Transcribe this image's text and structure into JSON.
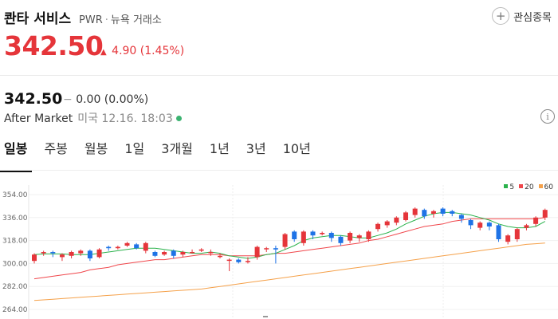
{
  "stock": {
    "name": "콴타 서비스",
    "ticker": "PWR",
    "exchange": "뉴욕 거래소",
    "price": "342.50",
    "change": "4.90",
    "change_pct": "(1.45%)",
    "up_color": "#e5353a",
    "down_color": "#1e73e6"
  },
  "watchlist": {
    "label": "관심종목",
    "icon": "plus-icon"
  },
  "after_market": {
    "price": "342.50",
    "change_symbol": "−",
    "change": "0.00 (0.00%)",
    "label": "After Market",
    "timestamp": "미국 12.16. 18:03",
    "status_color": "#3cb371",
    "info_icon": "info-icon"
  },
  "tabs": [
    {
      "label": "일봉",
      "active": true
    },
    {
      "label": "주봉",
      "active": false
    },
    {
      "label": "월봉",
      "active": false
    },
    {
      "label": "1일",
      "active": false
    },
    {
      "label": "3개월",
      "active": false
    },
    {
      "label": "1년",
      "active": false
    },
    {
      "label": "3년",
      "active": false
    },
    {
      "label": "10년",
      "active": false
    }
  ],
  "chart_data": {
    "type": "candlestick",
    "y_ticks": [
      "354.00",
      "336.00",
      "318.00",
      "300.00",
      "282.00",
      "264.00"
    ],
    "ylim": [
      264,
      354
    ],
    "legend": [
      {
        "name": "5",
        "color": "#2bb24c"
      },
      {
        "name": "20",
        "color": "#f0474c"
      },
      {
        "name": "60",
        "color": "#f5a14a"
      }
    ],
    "candles": [
      [
        302,
        307,
        301,
        308,
        300
      ],
      [
        308,
        309,
        308,
        310,
        306
      ],
      [
        309,
        308,
        308,
        310,
        305
      ],
      [
        305,
        307,
        303,
        308,
        302
      ],
      [
        306,
        309,
        305,
        310,
        304
      ],
      [
        308,
        310,
        308,
        311,
        306
      ],
      [
        310,
        304,
        304,
        311,
        302
      ],
      [
        305,
        311,
        305,
        312,
        304
      ],
      [
        313,
        312,
        311,
        314,
        310
      ],
      [
        312,
        313,
        311,
        314,
        311
      ],
      [
        314,
        316,
        313,
        317,
        313
      ],
      [
        315,
        312,
        312,
        316,
        311
      ],
      [
        310,
        316,
        309,
        317,
        308
      ],
      [
        309,
        306,
        306,
        310,
        305
      ],
      [
        307,
        309,
        306,
        310,
        306
      ],
      [
        310,
        306,
        305,
        311,
        304
      ],
      [
        307,
        309,
        306,
        310,
        305
      ],
      [
        309,
        309,
        308,
        311,
        308
      ],
      [
        310,
        311,
        309,
        312,
        309
      ],
      [
        309,
        309,
        307,
        311,
        306
      ],
      [
        306,
        306,
        305,
        308,
        304
      ],
      [
        303,
        303,
        302,
        304,
        294
      ],
      [
        303,
        301,
        301,
        304,
        300
      ],
      [
        302,
        302,
        301,
        305,
        300
      ],
      [
        305,
        313,
        304,
        314,
        303
      ],
      [
        312,
        312,
        311,
        313,
        309
      ],
      [
        312,
        311,
        311,
        314,
        300
      ],
      [
        313,
        323,
        312,
        324,
        311
      ],
      [
        325,
        319,
        318,
        326,
        317
      ],
      [
        316,
        325,
        315,
        326,
        314
      ],
      [
        325,
        322,
        320,
        326,
        319
      ],
      [
        323,
        324,
        322,
        325,
        322
      ],
      [
        324,
        320,
        318,
        325,
        317
      ],
      [
        321,
        316,
        314,
        322,
        314
      ],
      [
        318,
        324,
        317,
        325,
        316
      ],
      [
        320,
        322,
        318,
        323,
        317
      ],
      [
        319,
        325,
        318,
        326,
        317
      ],
      [
        327,
        331,
        326,
        332,
        325
      ],
      [
        330,
        333,
        329,
        334,
        328
      ],
      [
        332,
        336,
        331,
        337,
        330
      ],
      [
        334,
        340,
        333,
        341,
        333
      ],
      [
        338,
        343,
        337,
        344,
        336
      ],
      [
        342,
        337,
        336,
        343,
        335
      ],
      [
        339,
        341,
        337,
        342,
        336
      ],
      [
        343,
        339,
        338,
        344,
        337
      ],
      [
        341,
        339,
        338,
        342,
        337
      ],
      [
        338,
        335,
        333,
        339,
        332
      ],
      [
        334,
        330,
        328,
        335,
        327
      ],
      [
        328,
        332,
        327,
        333,
        326
      ],
      [
        332,
        329,
        328,
        333,
        326
      ],
      [
        330,
        319,
        318,
        331,
        317
      ],
      [
        317,
        322,
        316,
        323,
        315
      ],
      [
        319,
        327,
        318,
        328,
        317
      ],
      [
        328,
        330,
        327,
        331,
        326
      ],
      [
        331,
        336,
        330,
        337,
        329
      ],
      [
        336,
        342,
        335,
        343,
        334
      ]
    ],
    "ma5": [
      307,
      307.5,
      307.5,
      307.5,
      307,
      307,
      307,
      308,
      309,
      310,
      311,
      312,
      312,
      312,
      311,
      310,
      309,
      308,
      308,
      309,
      308,
      306,
      305,
      304,
      305,
      307,
      308,
      311,
      314,
      318,
      320,
      321,
      322,
      322,
      321,
      320,
      320,
      322,
      324,
      327,
      331,
      334,
      337,
      339,
      340,
      340,
      339,
      338,
      336,
      334,
      331,
      329,
      328,
      328,
      329,
      333
    ],
    "ma20": [
      288,
      289,
      290,
      291,
      292,
      293,
      295,
      296,
      297,
      299,
      300,
      301,
      302,
      303,
      303,
      304,
      305,
      306,
      307,
      307,
      307,
      306,
      306,
      306,
      306,
      307,
      308,
      308,
      309,
      310,
      311,
      312,
      313,
      314,
      315,
      316,
      318,
      319,
      321,
      323,
      325,
      327,
      329,
      330,
      331,
      333,
      334,
      335,
      335,
      335,
      335,
      335,
      335,
      335,
      335,
      336
    ],
    "ma60": [
      271,
      271.5,
      272,
      272.5,
      273,
      273.5,
      274,
      274.5,
      275,
      275.5,
      276,
      276.5,
      277,
      277.5,
      278,
      278.5,
      279,
      279.5,
      280,
      281,
      282,
      283,
      284,
      285,
      286,
      287,
      288,
      289,
      290,
      291,
      292,
      293,
      294,
      295,
      296,
      297,
      298,
      299,
      300,
      301,
      302,
      303,
      304,
      305,
      306,
      307,
      308,
      309,
      310,
      311,
      312,
      313,
      314,
      315,
      315.5,
      316
    ]
  }
}
